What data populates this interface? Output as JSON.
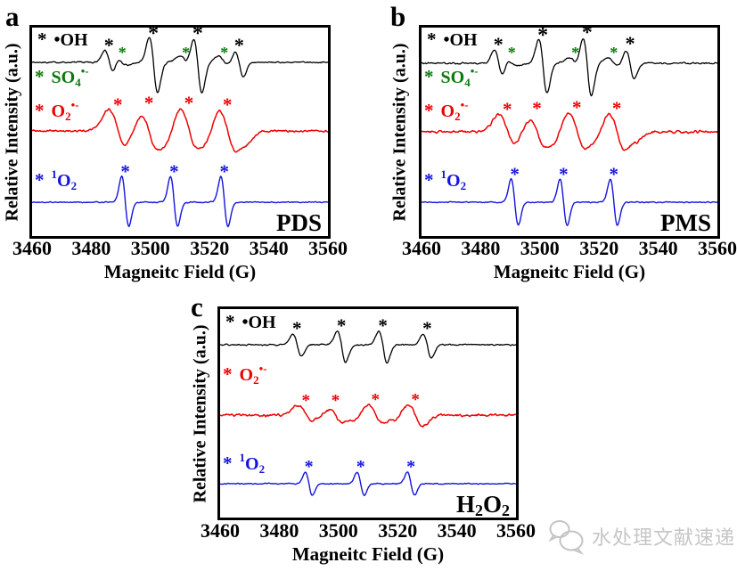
{
  "figure": {
    "background": "#ffffff",
    "colors": {
      "black": "#000000",
      "green": "#0a7a0a",
      "red": "#ee0000",
      "blue": "#1414dd"
    },
    "watermark": {
      "icon": "chat-bubbles-icon",
      "text": "水处理文献速递",
      "color": "#c6c6c6"
    }
  },
  "chart_data": [
    {
      "type": "line",
      "panel_label": "a",
      "condition_parts": [
        {
          "t": "PDS"
        }
      ],
      "xlabel": "Magneitc Field (G)",
      "ylabel": "Relative Intensity (a.u.)",
      "x_range": [
        3460,
        3560
      ],
      "x_ticks": [
        "3460",
        "3480",
        "3500",
        "3520",
        "3540",
        "3560"
      ],
      "grid": false,
      "legend": [
        {
          "pos": [
            6,
            2
          ],
          "color": "#000000",
          "parts": [
            {
              "t": "•OH"
            }
          ]
        },
        {
          "pos": [
            3,
            44
          ],
          "color": "#0a7a0a",
          "parts": [
            {
              "t": "SO"
            },
            {
              "t": "4",
              "v": "sub"
            },
            {
              "t": "•-",
              "v": "sup"
            }
          ]
        },
        {
          "pos": [
            3,
            82
          ],
          "color": "#ee0000",
          "parts": [
            {
              "t": "O"
            },
            {
              "t": "2",
              "v": "sub"
            },
            {
              "t": "•-",
              "v": "sup"
            }
          ]
        },
        {
          "pos": [
            3,
            160
          ],
          "color": "#1414dd",
          "parts": [
            {
              "t": "1",
              "v": "sup"
            },
            {
              "t": "O"
            },
            {
              "t": "2",
              "v": "sub"
            }
          ]
        }
      ],
      "series": [
        {
          "name": "hydroxyl-and-sulfate-radical-adduct-trace",
          "color": "#000000",
          "stroke": 1.3,
          "baseline": 39,
          "noise": 1.1,
          "peaks": [
            {
              "c": 3486,
              "up": 13,
              "down": 15,
              "w": 1.4
            },
            {
              "c": 3490.5,
              "up": 7,
              "down": 3,
              "w": 2.0
            },
            {
              "c": 3501,
              "up": 28,
              "down": 34,
              "w": 1.4
            },
            {
              "c": 3512,
              "up": 7,
              "down": 3,
              "w": 2.0
            },
            {
              "c": 3516,
              "up": 28,
              "down": 34,
              "w": 1.4
            },
            {
              "c": 3525,
              "up": 7,
              "down": 3,
              "w": 2.0
            },
            {
              "c": 3530,
              "up": 13,
              "down": 16,
              "w": 1.4
            }
          ],
          "stars": [
            {
              "x": 3486,
              "dy": 22,
              "color": "#000000",
              "size": 22
            },
            {
              "x": 3490.5,
              "dy": 13,
              "color": "#0a7a0a",
              "size": 18
            },
            {
              "x": 3501,
              "dy": 36,
              "color": "#000000",
              "size": 24
            },
            {
              "x": 3512,
              "dy": 13,
              "color": "#0a7a0a",
              "size": 18
            },
            {
              "x": 3516,
              "dy": 36,
              "color": "#000000",
              "size": 24
            },
            {
              "x": 3525,
              "dy": 13,
              "color": "#0a7a0a",
              "size": 18
            },
            {
              "x": 3530,
              "dy": 22,
              "color": "#000000",
              "size": 22
            }
          ]
        },
        {
          "name": "superoxide-radical-adduct-trace",
          "color": "#ee0000",
          "stroke": 1.5,
          "baseline": 116,
          "noise": 1.6,
          "peaks": [
            {
              "c": 3489,
              "up": 24,
              "down": 27,
              "w": 3.0
            },
            {
              "c": 3494.5,
              "up": 8,
              "down": 6,
              "w": 2.2
            },
            {
              "c": 3499.5,
              "up": 26,
              "down": 30,
              "w": 3.0
            },
            {
              "c": 3504.5,
              "up": 9,
              "down": 7,
              "w": 2.2
            },
            {
              "c": 3513,
              "up": 26,
              "down": 29,
              "w": 3.0
            },
            {
              "c": 3518,
              "up": 9,
              "down": 7,
              "w": 2.2
            },
            {
              "c": 3526,
              "up": 24,
              "down": 28,
              "w": 3.0
            },
            {
              "c": 3531,
              "up": 5,
              "down": 8,
              "w": 2.5
            }
          ],
          "stars": [
            {
              "x": 3489,
              "dy": 32,
              "color": "#ee0000",
              "size": 21
            },
            {
              "x": 3499.5,
              "dy": 34,
              "color": "#ee0000",
              "size": 21
            },
            {
              "x": 3513,
              "dy": 34,
              "color": "#ee0000",
              "size": 21
            },
            {
              "x": 3526,
              "dy": 32,
              "color": "#ee0000",
              "size": 21
            }
          ]
        },
        {
          "name": "singlet-oxygen-adduct-trace",
          "color": "#1414dd",
          "stroke": 1.4,
          "baseline": 196,
          "noise": 0.9,
          "peaks": [
            {
              "c": 3491.5,
              "up": 29,
              "down": 27,
              "w": 1.2
            },
            {
              "c": 3508,
              "up": 29,
              "down": 27,
              "w": 1.2
            },
            {
              "c": 3525,
              "up": 29,
              "down": 27,
              "w": 1.2
            }
          ],
          "stars": [
            {
              "x": 3491.5,
              "dy": 37,
              "color": "#1414dd",
              "size": 21
            },
            {
              "x": 3508,
              "dy": 37,
              "color": "#1414dd",
              "size": 21
            },
            {
              "x": 3525,
              "dy": 37,
              "color": "#1414dd",
              "size": 21
            }
          ]
        }
      ]
    },
    {
      "type": "line",
      "panel_label": "b",
      "condition_parts": [
        {
          "t": "PMS"
        }
      ],
      "xlabel": "Magneitc Field (G)",
      "ylabel": "Relative Intensity (a.u.)",
      "x_range": [
        3460,
        3560
      ],
      "x_ticks": [
        "3460",
        "3480",
        "3500",
        "3520",
        "3540",
        "3560"
      ],
      "grid": false,
      "legend": [
        {
          "pos": [
            6,
            2
          ],
          "color": "#000000",
          "parts": [
            {
              "t": "•OH"
            }
          ]
        },
        {
          "pos": [
            3,
            44
          ],
          "color": "#0a7a0a",
          "parts": [
            {
              "t": "SO"
            },
            {
              "t": "4",
              "v": "sub"
            },
            {
              "t": "•-",
              "v": "sup"
            }
          ]
        },
        {
          "pos": [
            3,
            82
          ],
          "color": "#ee0000",
          "parts": [
            {
              "t": "O"
            },
            {
              "t": "2",
              "v": "sub"
            },
            {
              "t": "•-",
              "v": "sup"
            }
          ]
        },
        {
          "pos": [
            3,
            160
          ],
          "color": "#1414dd",
          "parts": [
            {
              "t": "1",
              "v": "sup"
            },
            {
              "t": "O"
            },
            {
              "t": "2",
              "v": "sub"
            }
          ]
        }
      ],
      "series": [
        {
          "name": "hydroxyl-and-sulfate-radical-adduct-trace",
          "color": "#000000",
          "stroke": 1.3,
          "baseline": 40,
          "noise": 1.2,
          "peaks": [
            {
              "c": 3486,
              "up": 15,
              "down": 16,
              "w": 1.4
            },
            {
              "c": 3490.5,
              "up": 6,
              "down": 3,
              "w": 2.0
            },
            {
              "c": 3501,
              "up": 27,
              "down": 33,
              "w": 1.4
            },
            {
              "c": 3512,
              "up": 6,
              "down": 3,
              "w": 2.0
            },
            {
              "c": 3516,
              "up": 30,
              "down": 36,
              "w": 1.4
            },
            {
              "c": 3525,
              "up": 6,
              "down": 3,
              "w": 2.0
            },
            {
              "c": 3530.5,
              "up": 15,
              "down": 17,
              "w": 1.4
            }
          ],
          "stars": [
            {
              "x": 3486,
              "dy": 24,
              "color": "#000000",
              "size": 22
            },
            {
              "x": 3490.5,
              "dy": 14,
              "color": "#0a7a0a",
              "size": 18
            },
            {
              "x": 3501,
              "dy": 35,
              "color": "#000000",
              "size": 24
            },
            {
              "x": 3512,
              "dy": 14,
              "color": "#0a7a0a",
              "size": 18
            },
            {
              "x": 3516,
              "dy": 38,
              "color": "#000000",
              "size": 24
            },
            {
              "x": 3525,
              "dy": 14,
              "color": "#0a7a0a",
              "size": 18
            },
            {
              "x": 3530.5,
              "dy": 25,
              "color": "#000000",
              "size": 22
            }
          ]
        },
        {
          "name": "superoxide-radical-adduct-trace",
          "color": "#ee0000",
          "stroke": 1.5,
          "baseline": 117,
          "noise": 1.9,
          "peaks": [
            {
              "c": 3489,
              "up": 20,
              "down": 22,
              "w": 2.8
            },
            {
              "c": 3494,
              "up": 7,
              "down": 6,
              "w": 2.2
            },
            {
              "c": 3499,
              "up": 21,
              "down": 25,
              "w": 2.8
            },
            {
              "c": 3503.5,
              "up": 8,
              "down": 7,
              "w": 2.2
            },
            {
              "c": 3512.5,
              "up": 22,
              "down": 25,
              "w": 2.8
            },
            {
              "c": 3517.5,
              "up": 7,
              "down": 7,
              "w": 2.2
            },
            {
              "c": 3526,
              "up": 21,
              "down": 24,
              "w": 2.8
            },
            {
              "c": 3531,
              "up": 4,
              "down": 7,
              "w": 2.4
            }
          ],
          "stars": [
            {
              "x": 3489,
              "dy": 28,
              "color": "#ee0000",
              "size": 21
            },
            {
              "x": 3499,
              "dy": 29,
              "color": "#ee0000",
              "size": 21
            },
            {
              "x": 3512.5,
              "dy": 30,
              "color": "#ee0000",
              "size": 21
            },
            {
              "x": 3526,
              "dy": 29,
              "color": "#ee0000",
              "size": 21
            }
          ]
        },
        {
          "name": "singlet-oxygen-adduct-trace",
          "color": "#1414dd",
          "stroke": 1.4,
          "baseline": 196,
          "noise": 0.9,
          "peaks": [
            {
              "c": 3491.5,
              "up": 26,
              "down": 26,
              "w": 1.2
            },
            {
              "c": 3508,
              "up": 26,
              "down": 26,
              "w": 1.2
            },
            {
              "c": 3525,
              "up": 26,
              "down": 26,
              "w": 1.2
            }
          ],
          "stars": [
            {
              "x": 3491.5,
              "dy": 34,
              "color": "#1414dd",
              "size": 21
            },
            {
              "x": 3508,
              "dy": 34,
              "color": "#1414dd",
              "size": 21
            },
            {
              "x": 3525,
              "dy": 34,
              "color": "#1414dd",
              "size": 21
            }
          ]
        }
      ]
    },
    {
      "type": "line",
      "panel_label": "c",
      "condition_parts": [
        {
          "t": "H"
        },
        {
          "t": "2",
          "v": "sub"
        },
        {
          "t": "O"
        },
        {
          "t": "2",
          "v": "sub"
        }
      ],
      "xlabel": "Magneitc Field (G)",
      "ylabel": "Relative Intensity (a.u.)",
      "x_range": [
        3460,
        3560
      ],
      "x_ticks": [
        "3460",
        "3480",
        "3500",
        "3520",
        "3540",
        "3560"
      ],
      "grid": false,
      "legend": [
        {
          "pos": [
            6,
            3
          ],
          "color": "#000000",
          "parts": [
            {
              "t": "•OH"
            }
          ]
        },
        {
          "pos": [
            3,
            62
          ],
          "color": "#ee0000",
          "parts": [
            {
              "t": "O"
            },
            {
              "t": "2",
              "v": "sub"
            },
            {
              "t": "•-",
              "v": "sup"
            }
          ]
        },
        {
          "pos": [
            3,
            162
          ],
          "color": "#1414dd",
          "parts": [
            {
              "t": "1",
              "v": "sup"
            },
            {
              "t": "O"
            },
            {
              "t": "2",
              "v": "sub"
            }
          ]
        }
      ],
      "series": [
        {
          "name": "hydroxyl-radical-adduct-trace",
          "color": "#000000",
          "stroke": 1.3,
          "baseline": 40,
          "noise": 1.2,
          "peaks": [
            {
              "c": 3486,
              "up": 12,
              "down": 13,
              "w": 1.4
            },
            {
              "c": 3501,
              "up": 15,
              "down": 20,
              "w": 1.4
            },
            {
              "c": 3515,
              "up": 15,
              "down": 20,
              "w": 1.4
            },
            {
              "c": 3530,
              "up": 12,
              "down": 15,
              "w": 1.4
            }
          ],
          "stars": [
            {
              "x": 3486,
              "dy": 21,
              "color": "#000000",
              "size": 21
            },
            {
              "x": 3501,
              "dy": 24,
              "color": "#000000",
              "size": 21
            },
            {
              "x": 3515,
              "dy": 24,
              "color": "#000000",
              "size": 21
            },
            {
              "x": 3530,
              "dy": 21,
              "color": "#000000",
              "size": 21
            }
          ]
        },
        {
          "name": "superoxide-radical-adduct-trace",
          "color": "#ee0000",
          "stroke": 1.5,
          "baseline": 119,
          "noise": 2.1,
          "peaks": [
            {
              "c": 3489,
              "up": 11,
              "down": 12,
              "w": 2.6
            },
            {
              "c": 3494,
              "up": 5,
              "down": 5,
              "w": 2.2
            },
            {
              "c": 3499,
              "up": 11,
              "down": 13,
              "w": 2.6
            },
            {
              "c": 3504,
              "up": 5,
              "down": 5,
              "w": 2.2
            },
            {
              "c": 3512.5,
              "up": 12,
              "down": 13,
              "w": 2.6
            },
            {
              "c": 3517.5,
              "up": 5,
              "down": 5,
              "w": 2.2
            },
            {
              "c": 3526,
              "up": 12,
              "down": 13,
              "w": 2.6
            }
          ],
          "stars": [
            {
              "x": 3489,
              "dy": 19,
              "color": "#ee0000",
              "size": 19
            },
            {
              "x": 3499,
              "dy": 19,
              "color": "#ee0000",
              "size": 19
            },
            {
              "x": 3512.5,
              "dy": 20,
              "color": "#ee0000",
              "size": 19
            },
            {
              "x": 3526,
              "dy": 20,
              "color": "#ee0000",
              "size": 19
            }
          ]
        },
        {
          "name": "singlet-oxygen-adduct-trace",
          "color": "#1414dd",
          "stroke": 1.4,
          "baseline": 196,
          "noise": 0.9,
          "peaks": [
            {
              "c": 3490,
              "up": 13,
              "down": 13,
              "w": 1.2
            },
            {
              "c": 3507.5,
              "up": 13,
              "down": 13,
              "w": 1.2
            },
            {
              "c": 3524.5,
              "up": 13,
              "down": 13,
              "w": 1.2
            }
          ],
          "stars": [
            {
              "x": 3490,
              "dy": 22,
              "color": "#1414dd",
              "size": 20
            },
            {
              "x": 3507.5,
              "dy": 22,
              "color": "#1414dd",
              "size": 20
            },
            {
              "x": 3524.5,
              "dy": 22,
              "color": "#1414dd",
              "size": 20
            }
          ]
        }
      ]
    }
  ]
}
